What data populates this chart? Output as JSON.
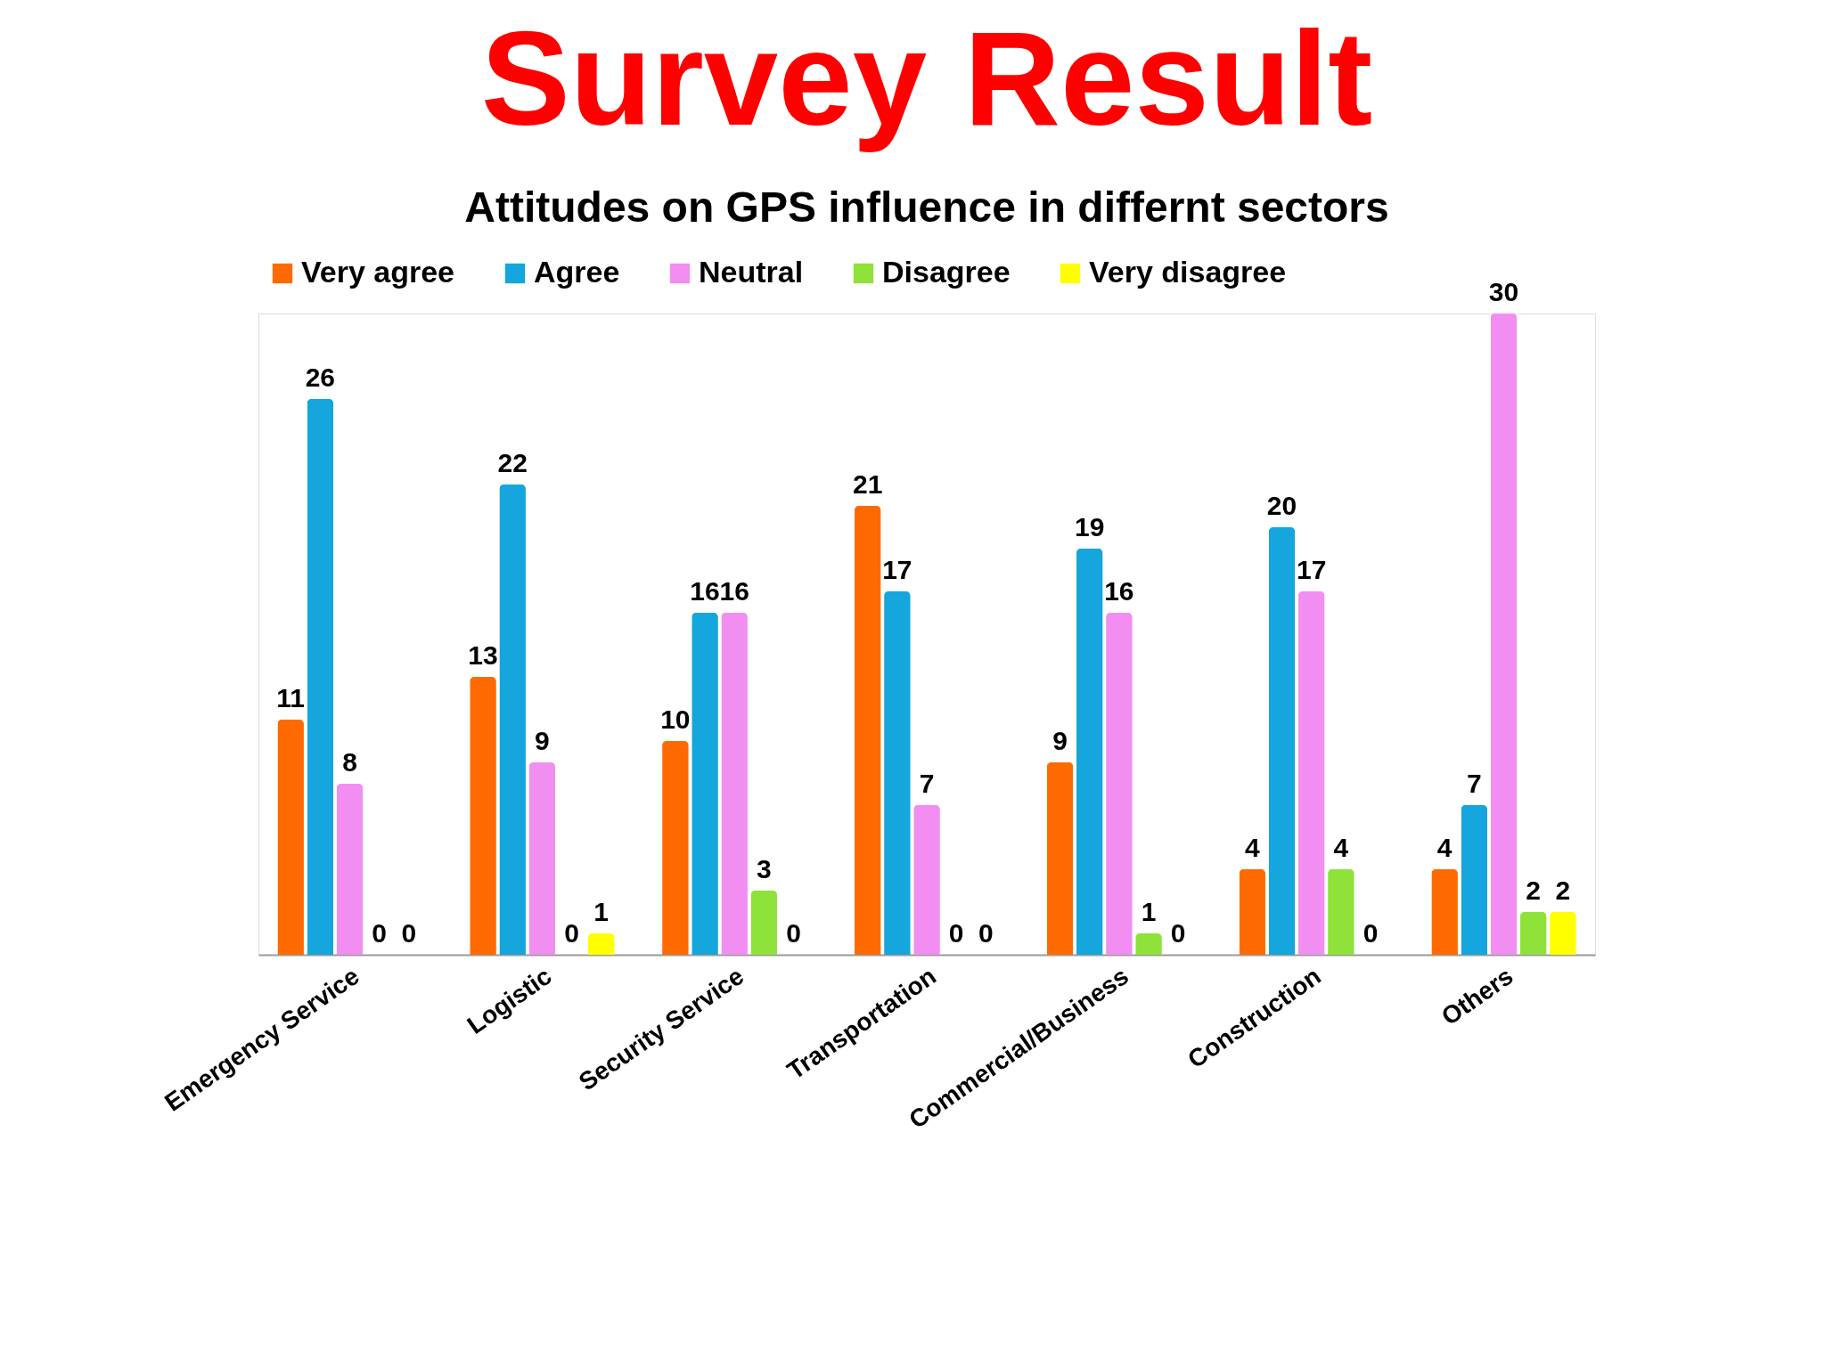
{
  "chart_data": {
    "type": "bar",
    "title": "Survey Result",
    "subtitle": "Attitudes on GPS influence in differnt sectors",
    "categories": [
      "Emergency Service",
      "Logistic",
      "Security Service",
      "Transportation",
      "Commercial/Business",
      "Construction",
      "Others"
    ],
    "series": [
      {
        "name": "Very agree",
        "color": "#ff6a00",
        "values": [
          11,
          13,
          10,
          21,
          9,
          4,
          4
        ]
      },
      {
        "name": "Agree",
        "color": "#14a6dc",
        "values": [
          26,
          22,
          16,
          17,
          19,
          20,
          7
        ]
      },
      {
        "name": "Neutral",
        "color": "#f28ef2",
        "values": [
          8,
          9,
          16,
          7,
          16,
          17,
          30
        ]
      },
      {
        "name": "Disagree",
        "color": "#8ee23a",
        "values": [
          0,
          0,
          3,
          0,
          1,
          4,
          2
        ]
      },
      {
        "name": "Very disagree",
        "color": "#ffff00",
        "values": [
          0,
          1,
          0,
          0,
          0,
          0,
          2
        ]
      }
    ],
    "data_labels": true,
    "legend": "top",
    "tick_labels": "x"
  }
}
